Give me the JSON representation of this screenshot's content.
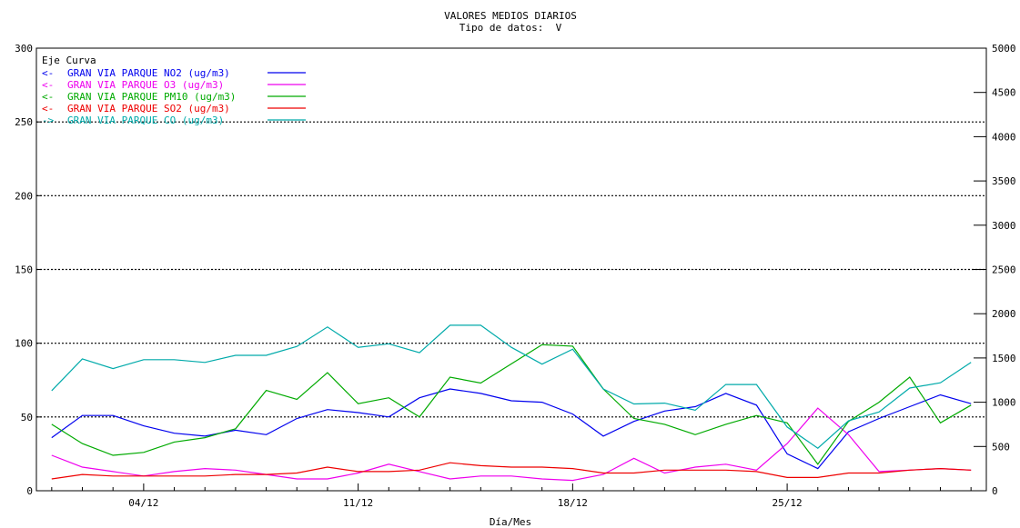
{
  "chart_data": {
    "type": "line",
    "title": "VALORES MEDIOS DIARIOS",
    "subtitle": "Tipo de datos:  V",
    "xlabel": "Día/Mes",
    "ylabel": "",
    "y2label": "",
    "x_days": [
      1,
      2,
      3,
      4,
      5,
      6,
      7,
      8,
      9,
      10,
      11,
      12,
      13,
      14,
      15,
      16,
      17,
      18,
      19,
      20,
      21,
      22,
      23,
      24,
      25,
      26,
      27,
      28,
      29,
      30,
      31
    ],
    "x_ticks": [
      {
        "day": 4,
        "label": "04/12"
      },
      {
        "day": 11,
        "label": "11/12"
      },
      {
        "day": 18,
        "label": "18/12"
      },
      {
        "day": 25,
        "label": "25/12"
      }
    ],
    "ylim_left": [
      0,
      300
    ],
    "yticks_left": [
      0,
      50,
      100,
      150,
      200,
      250,
      300
    ],
    "ylim_right": [
      0,
      5000
    ],
    "yticks_right": [
      0,
      500,
      1000,
      1500,
      2000,
      2500,
      3000,
      3500,
      4000,
      4500,
      5000
    ],
    "grid_dotted_left": [
      50,
      100,
      150,
      200,
      250
    ],
    "legend_header": "Eje Curva",
    "series": [
      {
        "name": "GRAN VIA PARQUE NO2  (ug/m3)",
        "axis": "left",
        "arrow": "<-",
        "color": "#0000ee",
        "values": [
          36,
          51,
          51,
          44,
          39,
          37,
          41,
          38,
          49,
          55,
          53,
          50,
          63,
          69,
          66,
          61,
          60,
          52,
          37,
          47,
          54,
          57,
          66,
          58,
          25,
          15,
          40,
          49,
          57,
          65,
          59
        ]
      },
      {
        "name": "GRAN VIA PARQUE O3  (ug/m3)",
        "axis": "left",
        "arrow": "<-",
        "color": "#ee00ee",
        "values": [
          24,
          16,
          13,
          10,
          13,
          15,
          14,
          11,
          8,
          8,
          12,
          18,
          13,
          8,
          10,
          10,
          8,
          7,
          11,
          22,
          12,
          16,
          18,
          14,
          32,
          56,
          38,
          13,
          14,
          15,
          14
        ]
      },
      {
        "name": "GRAN VIA PARQUE PM10  (ug/m3)",
        "axis": "left",
        "arrow": "<-",
        "color": "#00aa00",
        "values": [
          45,
          32,
          24,
          26,
          33,
          36,
          42,
          68,
          62,
          80,
          59,
          63,
          50,
          77,
          73,
          86,
          99,
          98,
          69,
          49,
          45,
          38,
          45,
          51,
          46,
          18,
          47,
          60,
          77,
          46,
          58
        ]
      },
      {
        "name": "GRAN VIA PARQUE SO2  (ug/m3)",
        "axis": "left",
        "arrow": "<-",
        "color": "#ee0000",
        "values": [
          8,
          11,
          10,
          10,
          10,
          10,
          11,
          11,
          12,
          16,
          13,
          13,
          14,
          19,
          17,
          16,
          16,
          15,
          12,
          12,
          14,
          14,
          14,
          13,
          9,
          9,
          12,
          12,
          14,
          15,
          14
        ]
      },
      {
        "name": "GRAN VIA PARQUE CO  (ug/m3)",
        "axis": "right",
        "arrow": "->",
        "color": "#00aaaa",
        "values": [
          1130,
          1490,
          1380,
          1480,
          1480,
          1450,
          1530,
          1530,
          1630,
          1850,
          1620,
          1660,
          1560,
          1870,
          1870,
          1620,
          1430,
          1600,
          1150,
          980,
          990,
          910,
          1200,
          1200,
          720,
          480,
          790,
          890,
          1160,
          1220,
          1450
        ]
      }
    ]
  }
}
